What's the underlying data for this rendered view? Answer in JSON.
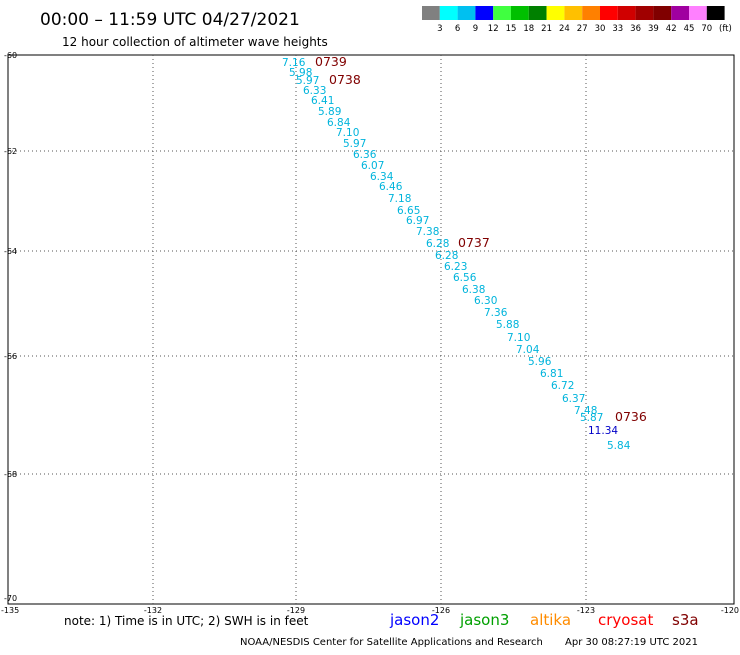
{
  "header": {
    "title": "00:00 – 11:59 UTC 04/27/2021",
    "subtitle": "12 hour collection of altimeter wave heights"
  },
  "legend": {
    "unit": "(ft)",
    "labels": [
      "3",
      "6",
      "9",
      "12",
      "15",
      "18",
      "21",
      "24",
      "27",
      "30",
      "33",
      "36",
      "39",
      "42",
      "45",
      "70"
    ],
    "colors": [
      "#808080",
      "#00ffff",
      "#00c0f0",
      "#0000ff",
      "#40ff40",
      "#00c000",
      "#008000",
      "#ffff00",
      "#ffc000",
      "#ff8000",
      "#ff0000",
      "#d00000",
      "#a00000",
      "#800000",
      "#a000a0",
      "#ff80ff",
      "#000000"
    ]
  },
  "map": {
    "lat_labels": [
      "-60",
      "-62",
      "-64",
      "-66",
      "-68",
      "-70"
    ],
    "lon_labels": [
      "-135",
      "-132",
      "-129",
      "-126",
      "-123",
      "-120"
    ],
    "lat_range": [
      -70,
      -60
    ],
    "lon_range": [
      -135,
      -120
    ]
  },
  "observations": [
    {
      "value": "7.16",
      "color": "#00b4dc"
    },
    {
      "value": "5.98",
      "color": "#00b4dc"
    },
    {
      "value": "5.97",
      "color": "#00b4dc"
    },
    {
      "value": "6.33",
      "color": "#00b4dc"
    },
    {
      "value": "6.41",
      "color": "#00b4dc"
    },
    {
      "value": "5.89",
      "color": "#00b4dc"
    },
    {
      "value": "6.84",
      "color": "#00b4dc"
    },
    {
      "value": "7.10",
      "color": "#00b4dc"
    },
    {
      "value": "5.97",
      "color": "#00b4dc"
    },
    {
      "value": "6.36",
      "color": "#00b4dc"
    },
    {
      "value": "6.07",
      "color": "#00b4dc"
    },
    {
      "value": "6.34",
      "color": "#00b4dc"
    },
    {
      "value": "6.46",
      "color": "#00b4dc"
    },
    {
      "value": "7.18",
      "color": "#00b4dc"
    },
    {
      "value": "6.65",
      "color": "#00b4dc"
    },
    {
      "value": "6.97",
      "color": "#00b4dc"
    },
    {
      "value": "7.38",
      "color": "#00b4dc"
    },
    {
      "value": "6.28",
      "color": "#00b4dc"
    },
    {
      "value": "6.28",
      "color": "#00b4dc"
    },
    {
      "value": "6.23",
      "color": "#00b4dc"
    },
    {
      "value": "6.56",
      "color": "#00b4dc"
    },
    {
      "value": "6.38",
      "color": "#00b4dc"
    },
    {
      "value": "6.30",
      "color": "#00b4dc"
    },
    {
      "value": "7.36",
      "color": "#00b4dc"
    },
    {
      "value": "5.88",
      "color": "#00b4dc"
    },
    {
      "value": "7.10",
      "color": "#00b4dc"
    },
    {
      "value": "7.04",
      "color": "#00b4dc"
    },
    {
      "value": "5.96",
      "color": "#00b4dc"
    },
    {
      "value": "6.81",
      "color": "#00b4dc"
    },
    {
      "value": "6.72",
      "color": "#00b4dc"
    },
    {
      "value": "6.37",
      "color": "#00b4dc"
    },
    {
      "value": "7.48",
      "color": "#00b4dc"
    },
    {
      "value": "5.87",
      "color": "#00b4dc"
    },
    {
      "value": "11.34",
      "color": "#0000c8"
    },
    {
      "value": "5.84",
      "color": "#00b4dc"
    }
  ],
  "time_labels": [
    "0739",
    "0738",
    "0737",
    "0736"
  ],
  "footer": {
    "note": "note:  1) Time is in UTC;  2) SWH is in feet",
    "satellites": [
      {
        "name": "jason2",
        "color": "#0000ff"
      },
      {
        "name": "jason3",
        "color": "#00a000"
      },
      {
        "name": "altika",
        "color": "#ff8c00"
      },
      {
        "name": "cryosat",
        "color": "#ff0000"
      },
      {
        "name": "s3a",
        "color": "#800000"
      }
    ],
    "credit": "NOAA/NESDIS Center for Satellite Applications and Research",
    "timestamp": "Apr 30 08:27:19 UTC 2021"
  }
}
